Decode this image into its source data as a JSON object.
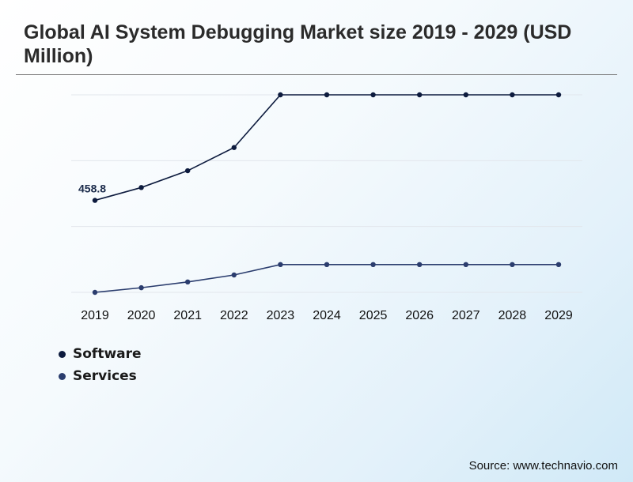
{
  "title": "Global AI System Debugging Market size 2019 - 2029 (USD Million)",
  "source": "Source: www.technavio.com",
  "chart_data": {
    "type": "line",
    "x": [
      "2019",
      "2020",
      "2021",
      "2022",
      "2023",
      "2024",
      "2025",
      "2026",
      "2027",
      "2028",
      "2029"
    ],
    "series": [
      {
        "name": "Software",
        "color": "#0d1b3e",
        "values": [
          458.8,
          481,
          510,
          550,
          641,
          641,
          641,
          641,
          641,
          641,
          641
        ]
      },
      {
        "name": "Services",
        "color": "#2b3d6e",
        "values": [
          300,
          308,
          318,
          330,
          348,
          348,
          348,
          348,
          348,
          348,
          348
        ]
      }
    ],
    "annotations": [
      {
        "series": "Software",
        "x": "2019",
        "text": "458.8"
      }
    ],
    "ylim": [
      300,
      641
    ],
    "grid": true,
    "legend_position": "bottom-left"
  }
}
